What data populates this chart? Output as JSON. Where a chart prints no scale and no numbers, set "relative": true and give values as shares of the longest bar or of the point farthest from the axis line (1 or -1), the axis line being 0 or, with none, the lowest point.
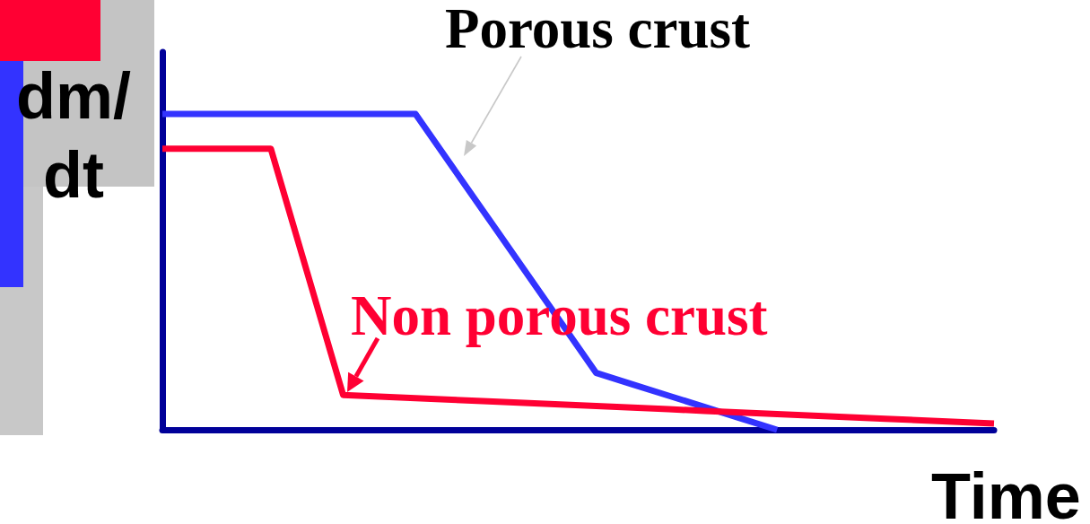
{
  "chart_data": {
    "type": "line",
    "relative": true,
    "xlabel": "Time",
    "ylabel": "dm/dt",
    "marker": "none",
    "categories": [
      null,
      null,
      null,
      null,
      null,
      null,
      null,
      null,
      null,
      null,
      null,
      null,
      null,
      null,
      null,
      null,
      null,
      null,
      null,
      null,
      null,
      null,
      null,
      null
    ],
    "series": [
      {
        "name": "Porous crust",
        "color": "#3333ff",
        "values": [
          1,
          1,
          1,
          1,
          1,
          1,
          1,
          1,
          0.836,
          0.672,
          0.508,
          0.344,
          0.18,
          0.144,
          0.108,
          0.072,
          0.036,
          0,
          null,
          null,
          null,
          null,
          null,
          null
        ]
      },
      {
        "name": "Non porous crust",
        "color": "#ff0033",
        "values": [
          0.89,
          0.89,
          0.89,
          0.89,
          0.5,
          0.11,
          0.105,
          0.1,
          0.095,
          0.09,
          0.085,
          0.08,
          0.075,
          0.07,
          0.065,
          0.06,
          0.055,
          0.05,
          0.045,
          0.04,
          0.035,
          0.03,
          0.025,
          0.02
        ]
      }
    ]
  }
}
